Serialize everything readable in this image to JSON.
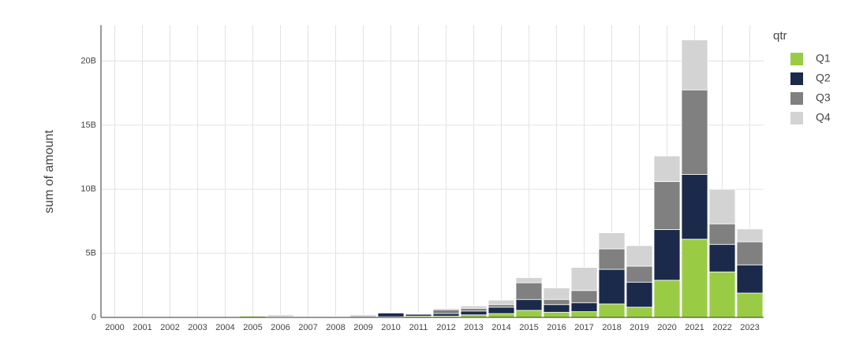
{
  "chart_data": {
    "type": "stacked_bar",
    "ylabel": "sum of amount",
    "legend_title": "qtr",
    "legend_position": "right",
    "grid": true,
    "categories": [
      "2000",
      "2001",
      "2002",
      "2003",
      "2004",
      "2005",
      "2006",
      "2007",
      "2008",
      "2009",
      "2010",
      "2011",
      "2012",
      "2013",
      "2014",
      "2015",
      "2016",
      "2017",
      "2018",
      "2019",
      "2020",
      "2021",
      "2022",
      "2023"
    ],
    "series": [
      {
        "name": "Q1",
        "color": "#99cc44",
        "values": [
          0,
          0,
          0,
          0,
          0,
          100000000.0,
          0,
          0,
          0,
          0,
          50000000.0,
          100000000.0,
          100000000.0,
          200000000.0,
          300000000.0,
          550000000.0,
          400000000.0,
          450000000.0,
          1050000000.0,
          800000000.0,
          2900000000.0,
          6100000000.0,
          3550000000.0,
          1900000000.0
        ]
      },
      {
        "name": "Q2",
        "color": "#1b2a4a",
        "values": [
          0,
          0,
          0,
          0,
          0,
          0,
          0,
          0,
          50000000.0,
          0,
          300000000.0,
          150000000.0,
          200000000.0,
          300000000.0,
          500000000.0,
          850000000.0,
          600000000.0,
          700000000.0,
          2700000000.0,
          1950000000.0,
          3950000000.0,
          5050000000.0,
          2150000000.0,
          2200000000.0
        ]
      },
      {
        "name": "Q3",
        "color": "#808080",
        "values": [
          0,
          0,
          0,
          0,
          0,
          0,
          50000000.0,
          0,
          0,
          0,
          50000000.0,
          50000000.0,
          300000000.0,
          200000000.0,
          200000000.0,
          1300000000.0,
          400000000.0,
          950000000.0,
          1600000000.0,
          1250000000.0,
          3750000000.0,
          6600000000.0,
          1600000000.0,
          1800000000.0
        ]
      },
      {
        "name": "Q4",
        "color": "#d3d3d3",
        "values": [
          0,
          0,
          0,
          0,
          0,
          0,
          150000000.0,
          50000000.0,
          50000000.0,
          200000000.0,
          50000000.0,
          50000000.0,
          100000000.0,
          200000000.0,
          350000000.0,
          400000000.0,
          900000000.0,
          1800000000.0,
          1250000000.0,
          1600000000.0,
          2000000000.0,
          3900000000.0,
          2700000000.0,
          1000000000.0
        ]
      }
    ],
    "ylim": [
      0,
      22800000000
    ],
    "yticks": [
      0,
      {
        "value": 5000000000,
        "label": "5B"
      },
      {
        "value": 10000000000,
        "label": "10B"
      },
      {
        "value": 15000000000,
        "label": "15B"
      },
      {
        "value": 20000000000,
        "label": "20B"
      }
    ]
  }
}
